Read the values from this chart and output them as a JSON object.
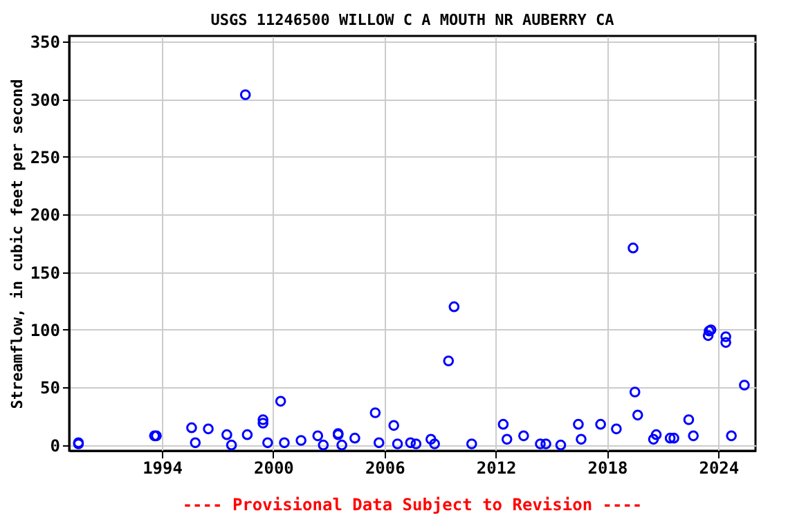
{
  "chart_data": {
    "type": "scatter",
    "title": "USGS 11246500 WILLOW C A MOUTH NR AUBERRY CA",
    "ylabel": "Streamflow, in cubic feet per second",
    "annotations": [
      "---- Provisional Data Subject to Revision ----"
    ],
    "x": [
      1989.5,
      1989.5,
      1993.6,
      1993.7,
      1995.6,
      1995.8,
      1996.5,
      1997.5,
      1997.75,
      1998.5,
      1998.6,
      1999.45,
      1999.45,
      1999.7,
      2000.4,
      2000.6,
      2001.5,
      2002.4,
      2002.7,
      2003.5,
      2003.5,
      2003.7,
      2004.4,
      2005.5,
      2005.7,
      2006.5,
      2006.7,
      2007.4,
      2007.7,
      2008.5,
      2008.7,
      2009.45,
      2009.75,
      2010.7,
      2012.4,
      2012.6,
      2013.5,
      2014.4,
      2014.7,
      2015.5,
      2016.45,
      2016.6,
      2017.65,
      2018.5,
      2019.4,
      2019.5,
      2019.65,
      2020.5,
      2020.65,
      2021.4,
      2021.6,
      2022.4,
      2022.65,
      2023.45,
      2023.5,
      2023.6,
      2024.4,
      2024.4,
      2024.7,
      2025.4
    ],
    "series": [
      {
        "color": "#0000ff",
        "values": [
          1,
          2,
          8,
          8,
          15,
          2,
          14,
          9,
          0,
          304,
          9,
          22,
          19,
          2,
          38,
          2,
          4,
          8,
          0,
          10,
          9,
          0,
          6,
          28,
          2,
          17,
          1,
          2,
          1,
          5,
          1,
          73,
          120,
          1,
          18,
          5,
          8,
          1,
          1,
          0,
          18,
          5,
          18,
          14,
          171,
          46,
          26,
          5,
          9,
          6,
          6,
          22,
          8,
          95,
          99,
          100,
          94,
          89,
          8,
          52
        ]
      }
    ],
    "xlim": [
      1989,
      2026
    ],
    "xticks": [
      1994,
      2000,
      2006,
      2012,
      2018,
      2024
    ],
    "ylim": [
      -5,
      355
    ],
    "yticks": [
      0,
      50,
      100,
      150,
      200,
      250,
      300,
      350
    ],
    "grid": true,
    "marker": "circle",
    "legend": false
  }
}
